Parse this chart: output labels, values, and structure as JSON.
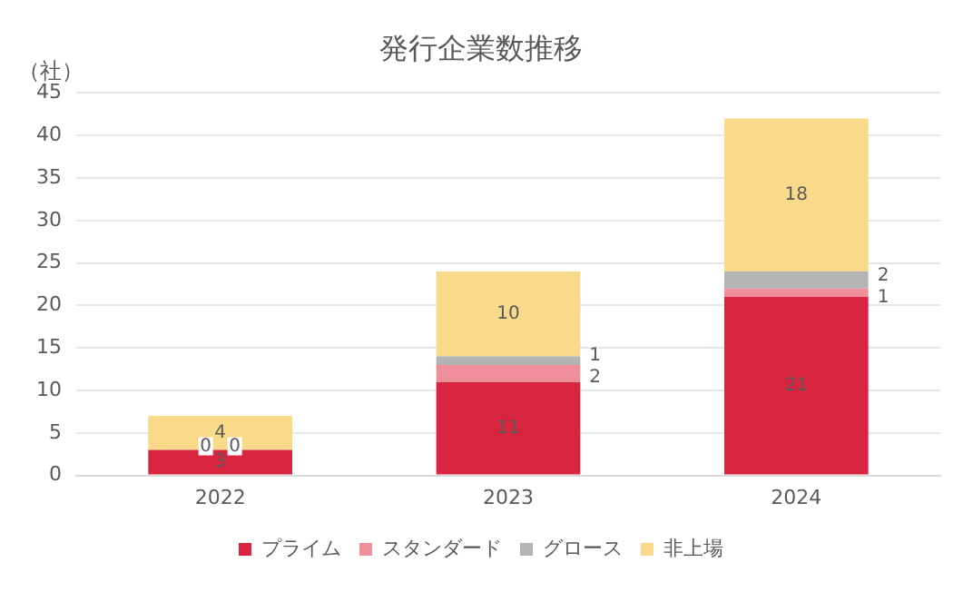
{
  "chart_data": {
    "type": "bar",
    "title": "発行企業数推移",
    "ylabel": "（社）",
    "categories": [
      "2022",
      "2023",
      "2024"
    ],
    "stacked": true,
    "data_labels": true,
    "grid": "y",
    "legend": "bottom",
    "ylim": [
      0,
      45
    ],
    "yticks": [
      0,
      5,
      10,
      15,
      20,
      25,
      30,
      35,
      40,
      45
    ],
    "series": [
      {
        "name": "プライム",
        "color": "#d9253f",
        "values": [
          3,
          11,
          21
        ]
      },
      {
        "name": "スタンダード",
        "color": "#ee8f9a",
        "values": [
          0,
          2,
          1
        ]
      },
      {
        "name": "グロース",
        "color": "#b4b4b4",
        "values": [
          0,
          1,
          2
        ]
      },
      {
        "name": "非上場",
        "color": "#f9d98a",
        "values": [
          4,
          10,
          18
        ]
      }
    ]
  }
}
